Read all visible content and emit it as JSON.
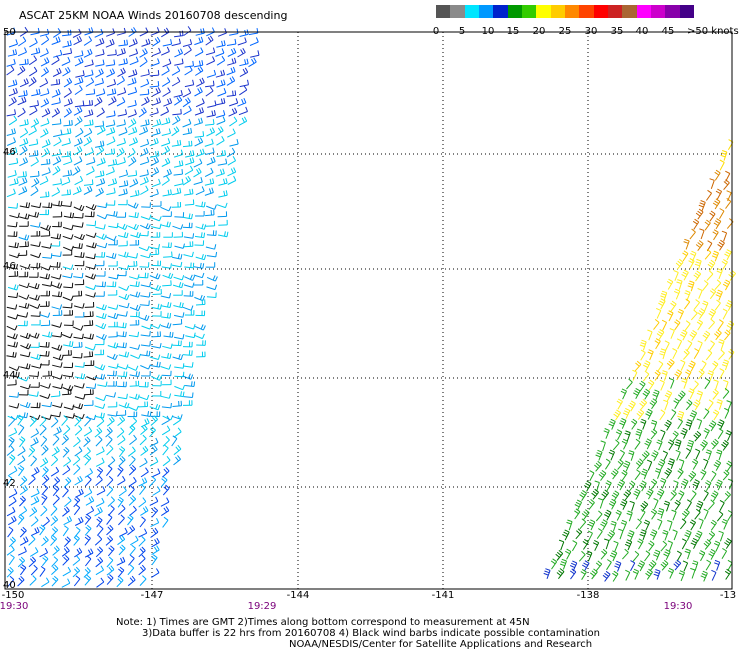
{
  "title": "ASCAT 25KM NOAA Winds 20160708 descending",
  "colorbar": {
    "swatches": [
      "#555555",
      "#8a8a8a",
      "#00e5ff",
      "#0099ff",
      "#0022cc",
      "#009900",
      "#33cc00",
      "#ffff00",
      "#ffcc00",
      "#ff8800",
      "#ff4400",
      "#ff0000",
      "#cc2222",
      "#aa6633",
      "#ff00ff",
      "#cc00cc",
      "#8800aa",
      "#440088"
    ],
    "labels": [
      "0",
      "5",
      "10",
      "15",
      "20",
      "25",
      "30",
      "35",
      "40",
      "45",
      ">50 knots"
    ]
  },
  "map": {
    "lat_labels": [
      "50",
      "46",
      "46",
      "44",
      "42",
      "40"
    ],
    "lon_labels": [
      "-150",
      "-147",
      "-144",
      "-141",
      "-138",
      "-13"
    ],
    "time_labels": [
      "19:30",
      "19:29",
      "19:30"
    ]
  },
  "notes": {
    "line1": "Note: 1) Times are GMT 2)Times along bottom correspond to measurement at 45N",
    "line2": "3)Data buffer is 22 hrs from 20160708 4) Black wind barbs indicate possible contamination",
    "line3": "NOAA/NESDIS/Center for Satellite Applications and Research"
  }
}
